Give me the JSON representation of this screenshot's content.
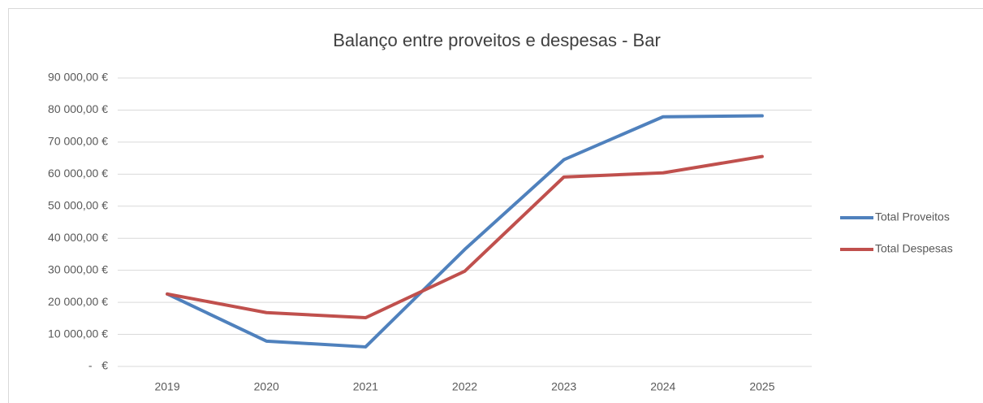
{
  "chart_data": {
    "type": "line",
    "title": "Balanço entre proveitos e despesas - Bar",
    "categories": [
      "2019",
      "2020",
      "2021",
      "2022",
      "2023",
      "2024",
      "2025"
    ],
    "series": [
      {
        "name": "Total Proveitos",
        "color": "#4f81bd",
        "values": [
          22600,
          7900,
          6100,
          36500,
          64500,
          77900,
          78200
        ]
      },
      {
        "name": "Total Despesas",
        "color": "#c0504d",
        "values": [
          22600,
          16800,
          15200,
          29700,
          59100,
          60400,
          65500
        ]
      }
    ],
    "ylim": [
      0,
      90000
    ],
    "yticks": [
      {
        "value": 0,
        "label": "-   €"
      },
      {
        "value": 10000,
        "label": "10 000,00 €"
      },
      {
        "value": 20000,
        "label": "20 000,00 €"
      },
      {
        "value": 30000,
        "label": "30 000,00 €"
      },
      {
        "value": 40000,
        "label": "40 000,00 €"
      },
      {
        "value": 50000,
        "label": "50 000,00 €"
      },
      {
        "value": 60000,
        "label": "60 000,00 €"
      },
      {
        "value": 70000,
        "label": "70 000,00 €"
      },
      {
        "value": 80000,
        "label": "80 000,00 €"
      },
      {
        "value": 90000,
        "label": "90 000,00 €"
      }
    ],
    "grid": true,
    "legend": "right"
  }
}
